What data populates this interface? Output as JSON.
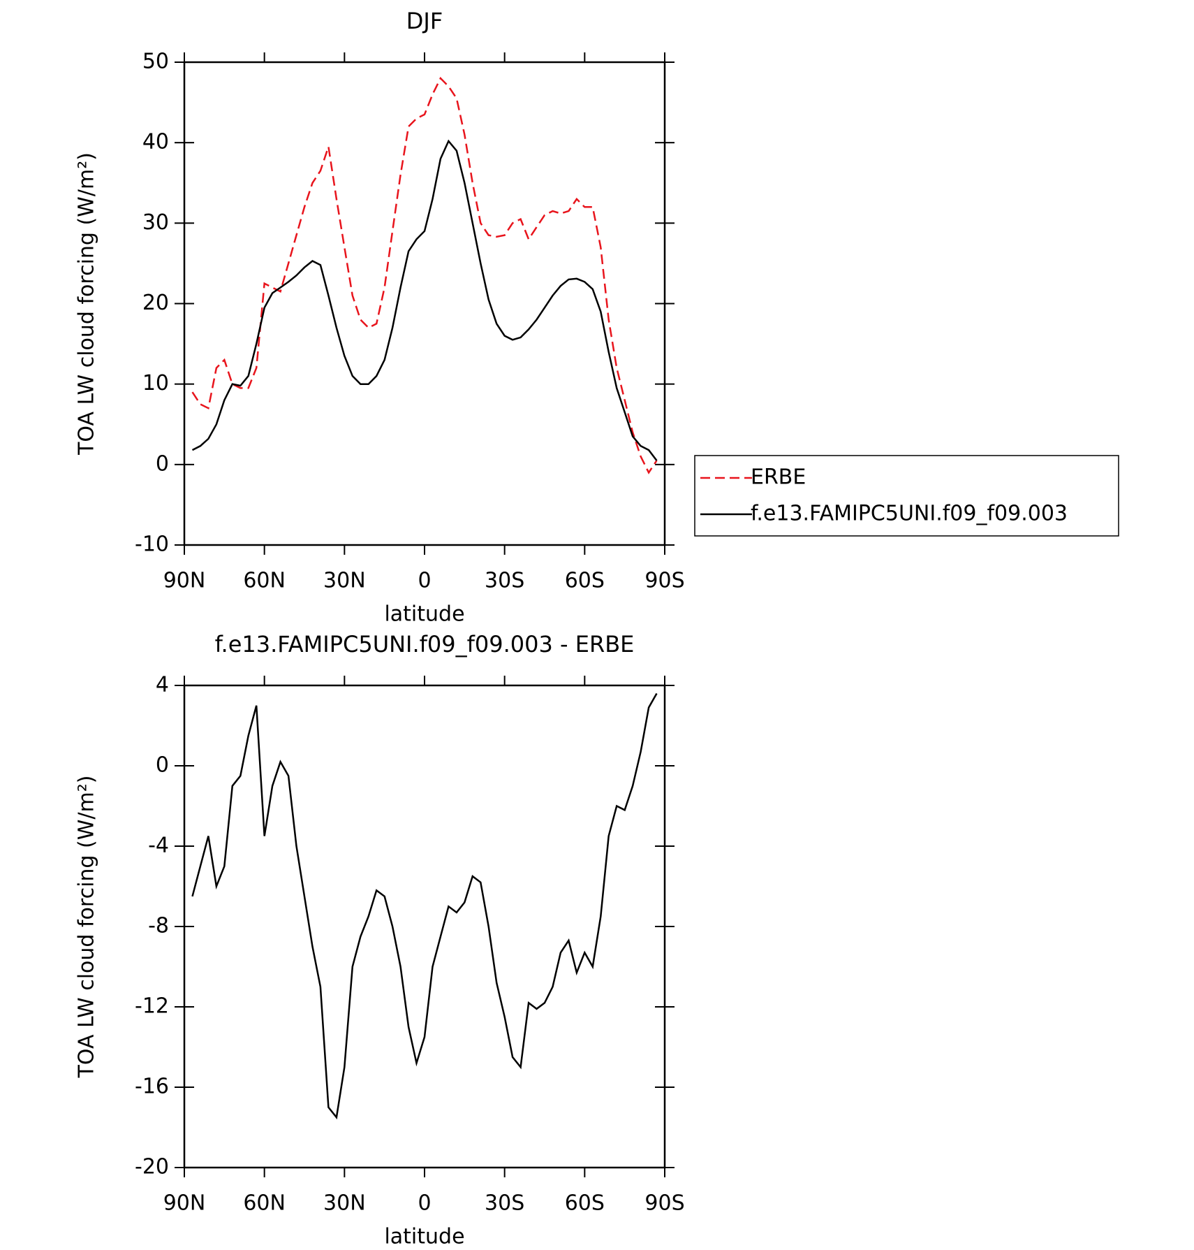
{
  "chart_data": [
    {
      "type": "line",
      "title": "DJF",
      "xlabel": "latitude",
      "ylabel": "TOA LW cloud forcing (W/m²)",
      "x": [
        87,
        84,
        81,
        78,
        75,
        72,
        69,
        66,
        63,
        60,
        57,
        54,
        51,
        48,
        45,
        42,
        39,
        36,
        33,
        30,
        27,
        24,
        21,
        18,
        15,
        12,
        9,
        6,
        3,
        0,
        -3,
        -6,
        -9,
        -12,
        -15,
        -18,
        -21,
        -24,
        -27,
        -30,
        -33,
        -36,
        -39,
        -42,
        -45,
        -48,
        -51,
        -54,
        -57,
        -60,
        -63,
        -66,
        -69,
        -72,
        -75,
        -78,
        -81,
        -84,
        -87
      ],
      "series": [
        {
          "name": "ERBE",
          "color": "#e8141c",
          "style": "dashed",
          "values": [
            9,
            7.5,
            7,
            12,
            13,
            10,
            9.5,
            9.5,
            12,
            22.5,
            22,
            21.5,
            25,
            28.5,
            32,
            35,
            36.5,
            39.5,
            33,
            27,
            21,
            18,
            17,
            17.5,
            22,
            29,
            36,
            42,
            43,
            43.5,
            46,
            48,
            47,
            45.5,
            41,
            35,
            30,
            28.5,
            28.3,
            28.5,
            30,
            30.5,
            28,
            29.5,
            31,
            31.5,
            31.2,
            31.5,
            33,
            32,
            32,
            27,
            18,
            12,
            8,
            4,
            1,
            -1,
            0.5
          ]
        },
        {
          "name": "f.e13.FAMIPC5UNI.f09_f09.003",
          "color": "#000000",
          "style": "solid",
          "values": [
            1.8,
            2.3,
            3.2,
            5,
            8,
            10,
            9.8,
            11,
            15,
            19.5,
            21.3,
            22,
            22.7,
            23.5,
            24.5,
            25.3,
            24.8,
            21,
            17,
            13.5,
            11,
            10,
            10,
            11,
            13,
            17,
            22,
            26.5,
            28,
            29,
            33,
            38,
            40.2,
            39,
            35,
            30,
            25,
            20.5,
            17.5,
            16,
            15.5,
            15.8,
            16.8,
            18,
            19.5,
            21,
            22.2,
            23,
            23.1,
            22.7,
            21.8,
            19,
            14,
            9.5,
            6.5,
            3.5,
            2.3,
            1.8,
            0.5
          ]
        }
      ],
      "xlim": [
        90,
        -90
      ],
      "xticks": [
        {
          "value": 90,
          "label": "90N"
        },
        {
          "value": 60,
          "label": "60N"
        },
        {
          "value": 30,
          "label": "30N"
        },
        0,
        {
          "value": -30,
          "label": "30S"
        },
        {
          "value": -60,
          "label": "60S"
        },
        {
          "value": -90,
          "label": "90S"
        }
      ],
      "ylim": [
        -10,
        50
      ],
      "yticks": [
        -10,
        0,
        10,
        20,
        30,
        40,
        50
      ],
      "legend": "right"
    },
    {
      "type": "line",
      "title": "f.e13.FAMIPC5UNI.f09_f09.003 - ERBE",
      "xlabel": "latitude",
      "ylabel": "TOA LW cloud forcing (W/m²)",
      "x": [
        87,
        84,
        81,
        78,
        75,
        72,
        69,
        66,
        63,
        60,
        57,
        54,
        51,
        48,
        45,
        42,
        39,
        36,
        33,
        30,
        27,
        24,
        21,
        18,
        15,
        12,
        9,
        6,
        3,
        0,
        -3,
        -6,
        -9,
        -12,
        -15,
        -18,
        -21,
        -24,
        -27,
        -30,
        -33,
        -36,
        -39,
        -42,
        -45,
        -48,
        -51,
        -54,
        -57,
        -60,
        -63,
        -66,
        -69,
        -72,
        -75,
        -78,
        -81,
        -84,
        -87
      ],
      "series": [
        {
          "color": "#000000",
          "style": "solid",
          "values": [
            -6.5,
            -5,
            -3.5,
            -6,
            -5,
            -1,
            -0.5,
            1.5,
            3,
            -3.5,
            -1,
            0.2,
            -0.5,
            -4,
            -6.5,
            -9,
            -11,
            -17,
            -17.5,
            -15,
            -10,
            -8.5,
            -7.5,
            -6.2,
            -6.5,
            -8,
            -10,
            -13,
            -14.8,
            -13.5,
            -10,
            -8.5,
            -7,
            -7.3,
            -6.8,
            -5.5,
            -5.8,
            -8,
            -10.8,
            -12.5,
            -14.5,
            -15,
            -11.8,
            -12.1,
            -11.8,
            -11,
            -9.3,
            -8.7,
            -10.3,
            -9.3,
            -10,
            -7.5,
            -3.5,
            -2,
            -2.2,
            -1,
            0.7,
            2.9,
            3.6
          ]
        }
      ],
      "xlim": [
        90,
        -90
      ],
      "xticks": [
        {
          "value": 90,
          "label": "90N"
        },
        {
          "value": 60,
          "label": "60N"
        },
        {
          "value": 30,
          "label": "30N"
        },
        0,
        {
          "value": -30,
          "label": "30S"
        },
        {
          "value": -60,
          "label": "60S"
        },
        {
          "value": -90,
          "label": "90S"
        }
      ],
      "ylim": [
        -20,
        4
      ],
      "yticks": [
        -20,
        -16,
        -12,
        -8,
        -4,
        0,
        4
      ]
    }
  ]
}
